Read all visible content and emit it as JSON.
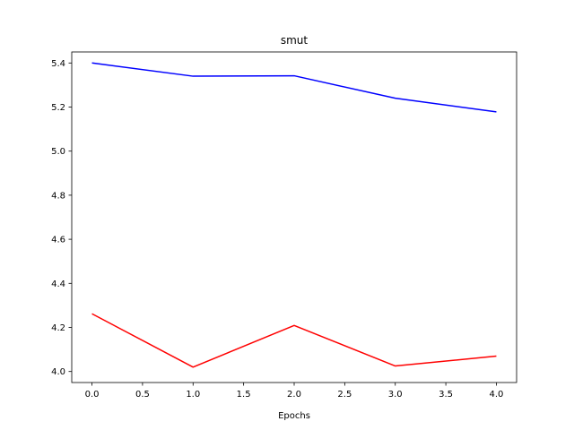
{
  "chart_data": {
    "type": "line",
    "title": "smut",
    "xlabel": "Epochs",
    "ylabel": "",
    "xlim": [
      -0.2,
      4.2
    ],
    "ylim": [
      3.95,
      5.45
    ],
    "x": [
      0,
      1,
      2,
      3,
      4
    ],
    "xticks": [
      "0.0",
      "0.5",
      "1.0",
      "1.5",
      "2.0",
      "2.5",
      "3.0",
      "3.5",
      "4.0"
    ],
    "yticks": [
      "4.0",
      "4.2",
      "4.4",
      "4.6",
      "4.8",
      "5.0",
      "5.2",
      "5.4"
    ],
    "grid": false,
    "series": [
      {
        "color": "#0000ff",
        "values": [
          5.4,
          5.34,
          5.342,
          5.24,
          5.178
        ]
      },
      {
        "color": "#ff0000",
        "values": [
          4.262,
          4.02,
          4.209,
          4.025,
          4.07
        ]
      }
    ]
  }
}
